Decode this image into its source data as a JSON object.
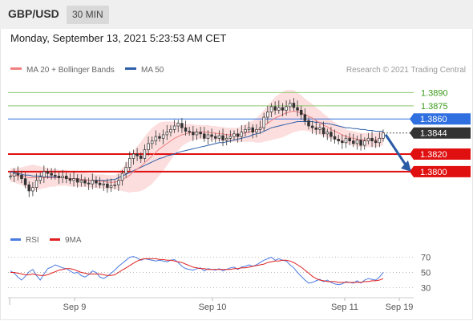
{
  "header": {
    "pair": "GBP/USD",
    "timeframe": "30 MIN"
  },
  "datetime": "Monday, September 13, 2021 5:23:53 AM CET",
  "chart_data": [
    {
      "type": "line",
      "title": "GBP/USD",
      "legend": [
        {
          "name": "MA 20 + Bollinger Bands",
          "color": "#f08080"
        },
        {
          "name": "MA 50",
          "color": "#2e5fa8"
        }
      ],
      "credit": "Research © 2021 Trading Central",
      "levels": [
        {
          "label": "1.3890",
          "value": 1.389,
          "color": "#3a9a1a",
          "style": "thin-text"
        },
        {
          "label": "1.3875",
          "value": 1.3875,
          "color": "#3a9a1a",
          "style": "thin-text"
        },
        {
          "label": "1.3860",
          "value": 1.386,
          "color": "#2f6fe0",
          "style": "box"
        },
        {
          "label": "1.3844",
          "value": 1.3844,
          "color": "#333333",
          "style": "box"
        },
        {
          "label": "1.3820",
          "value": 1.382,
          "color": "#e01010",
          "style": "box"
        },
        {
          "label": "1.3800",
          "value": 1.38,
          "color": "#e01010",
          "style": "box"
        }
      ],
      "last_price": 1.3844,
      "ylim": [
        1.3735,
        1.3905
      ],
      "x_labels": [
        "Sep 9",
        "Sep 10",
        "Sep 11",
        "Sep 19"
      ],
      "close": [
        1.3795,
        1.3798,
        1.3796,
        1.3792,
        1.3785,
        1.3778,
        1.3782,
        1.379,
        1.3794,
        1.38,
        1.3798,
        1.3796,
        1.3795,
        1.3793,
        1.3795,
        1.3792,
        1.379,
        1.3792,
        1.3788,
        1.379,
        1.3787,
        1.3786,
        1.379,
        1.3787,
        1.3785,
        1.3786,
        1.3782,
        1.3784,
        1.3785,
        1.379,
        1.3798,
        1.3805,
        1.3815,
        1.382,
        1.3818,
        1.3815,
        1.3825,
        1.3832,
        1.3835,
        1.384,
        1.3838,
        1.3842,
        1.3845,
        1.3848,
        1.3852,
        1.3855,
        1.385,
        1.3846,
        1.3845,
        1.3842,
        1.3845,
        1.3843,
        1.3838,
        1.3842,
        1.384,
        1.3838,
        1.3841,
        1.3836,
        1.3838,
        1.384,
        1.3843,
        1.384,
        1.3845,
        1.3848,
        1.385,
        1.3845,
        1.3848,
        1.385,
        1.3862,
        1.3868,
        1.3874,
        1.387,
        1.3873,
        1.387,
        1.3874,
        1.3878,
        1.3873,
        1.387,
        1.3865,
        1.3858,
        1.3852,
        1.385,
        1.3848,
        1.385,
        1.3843,
        1.3845,
        1.384,
        1.3837,
        1.3835,
        1.3833,
        1.3838,
        1.3835,
        1.3832,
        1.3836,
        1.383,
        1.3835,
        1.3838,
        1.3835,
        1.3833,
        1.3838,
        1.3844
      ],
      "ma50": [
        1.38,
        1.3799,
        1.3798,
        1.3797,
        1.3796,
        1.3796,
        1.3795,
        1.3795,
        1.3795,
        1.3795,
        1.3794,
        1.3794,
        1.3794,
        1.3793,
        1.3793,
        1.3793,
        1.3792,
        1.3792,
        1.3792,
        1.3791,
        1.3791,
        1.379,
        1.379,
        1.379,
        1.379,
        1.379,
        1.379,
        1.3791,
        1.3791,
        1.3793,
        1.3795,
        1.3797,
        1.3799,
        1.3801,
        1.3803,
        1.3805,
        1.3807,
        1.3809,
        1.3811,
        1.3813,
        1.3815,
        1.3816,
        1.3818,
        1.3819,
        1.382,
        1.3822,
        1.3823,
        1.3824,
        1.3825,
        1.3826,
        1.3827,
        1.3828,
        1.3829,
        1.383,
        1.3831,
        1.3832,
        1.3833,
        1.3833,
        1.3834,
        1.3835,
        1.3836,
        1.3837,
        1.3838,
        1.3839,
        1.384,
        1.3842,
        1.3843,
        1.3844,
        1.3846,
        1.3848,
        1.385,
        1.3851,
        1.3852,
        1.3853,
        1.3854,
        1.3855,
        1.3856,
        1.3857,
        1.3857,
        1.3857,
        1.3857,
        1.3857,
        1.3856,
        1.3856,
        1.3855,
        1.3855,
        1.3854,
        1.3853,
        1.3852,
        1.3851,
        1.385,
        1.385,
        1.3849,
        1.3849,
        1.3848,
        1.3848,
        1.3847,
        1.3847,
        1.3846,
        1.3846,
        1.3846
      ],
      "ma20": [
        1.3796,
        1.3796,
        1.3795,
        1.3795,
        1.3794,
        1.3793,
        1.3793,
        1.3793,
        1.3793,
        1.3793,
        1.3793,
        1.3793,
        1.3793,
        1.3793,
        1.3793,
        1.3793,
        1.3792,
        1.3792,
        1.3792,
        1.3791,
        1.3791,
        1.379,
        1.379,
        1.3789,
        1.3789,
        1.3789,
        1.3788,
        1.3788,
        1.3788,
        1.3789,
        1.3791,
        1.3793,
        1.3796,
        1.38,
        1.3803,
        1.3806,
        1.381,
        1.3814,
        1.3818,
        1.3822,
        1.3826,
        1.3829,
        1.3832,
        1.3835,
        1.3838,
        1.384,
        1.3842,
        1.3843,
        1.3844,
        1.3845,
        1.3845,
        1.3845,
        1.3845,
        1.3845,
        1.3844,
        1.3844,
        1.3843,
        1.3843,
        1.3842,
        1.3842,
        1.3842,
        1.3842,
        1.3843,
        1.3844,
        1.3845,
        1.3846,
        1.3847,
        1.3849,
        1.3852,
        1.3855,
        1.3858,
        1.3861,
        1.3863,
        1.3865,
        1.3867,
        1.3868,
        1.3869,
        1.3868,
        1.3867,
        1.3865,
        1.3863,
        1.3861,
        1.3858,
        1.3856,
        1.3853,
        1.3851,
        1.3848,
        1.3846,
        1.3844,
        1.3842,
        1.384,
        1.3839,
        1.3838,
        1.3837,
        1.3836,
        1.3836,
        1.3836,
        1.3836,
        1.3836,
        1.3837,
        1.3838
      ],
      "bb_width": [
        0.0008,
        0.0008,
        0.0009,
        0.001,
        0.0012,
        0.0014,
        0.0015,
        0.0014,
        0.0013,
        0.0012,
        0.0011,
        0.001,
        0.001,
        0.0009,
        0.0009,
        0.0009,
        0.0009,
        0.0009,
        0.0009,
        0.0009,
        0.0008,
        0.0008,
        0.0008,
        0.0008,
        0.0008,
        0.0008,
        0.0008,
        0.0008,
        0.0008,
        0.001,
        0.0013,
        0.0016,
        0.002,
        0.0023,
        0.0026,
        0.0028,
        0.003,
        0.0031,
        0.0032,
        0.0031,
        0.003,
        0.0028,
        0.0025,
        0.0022,
        0.0019,
        0.0016,
        0.0013,
        0.0011,
        0.001,
        0.0009,
        0.0008,
        0.0008,
        0.0008,
        0.0008,
        0.0008,
        0.0008,
        0.0008,
        0.0008,
        0.0008,
        0.0008,
        0.0008,
        0.0008,
        0.0009,
        0.001,
        0.0011,
        0.0012,
        0.0014,
        0.0016,
        0.0018,
        0.002,
        0.0022,
        0.0024,
        0.0025,
        0.0026,
        0.0026,
        0.0025,
        0.0024,
        0.0022,
        0.002,
        0.0018,
        0.0017,
        0.0016,
        0.0015,
        0.0014,
        0.0013,
        0.0012,
        0.0011,
        0.001,
        0.0009,
        0.0009,
        0.0008,
        0.0008,
        0.0008,
        0.0008,
        0.0008,
        0.0008,
        0.0008,
        0.0008,
        0.0008,
        0.0008,
        0.0008
      ],
      "projection": {
        "from": 1.3844,
        "to": 1.38
      }
    },
    {
      "type": "line",
      "legend": [
        {
          "name": "RSI",
          "color": "#4a7be0"
        },
        {
          "name": "9MA",
          "color": "#e02020"
        }
      ],
      "ylim": [
        20,
        80
      ],
      "y_ticks": [
        30,
        50,
        70
      ],
      "rsi": [
        52,
        49,
        44,
        40,
        45,
        51,
        54,
        46,
        40,
        48,
        55,
        57,
        60,
        58,
        56,
        55,
        52,
        49,
        50,
        46,
        44,
        47,
        52,
        50,
        44,
        42,
        45,
        49,
        53,
        58,
        62,
        66,
        70,
        71,
        69,
        66,
        68,
        67,
        66,
        65,
        66,
        65,
        64,
        66,
        67,
        63,
        58,
        55,
        54,
        53,
        55,
        56,
        52,
        55,
        54,
        53,
        55,
        52,
        54,
        56,
        57,
        54,
        57,
        58,
        60,
        58,
        60,
        63,
        66,
        68,
        70,
        66,
        68,
        66,
        65,
        60,
        56,
        50,
        45,
        40,
        36,
        37,
        39,
        41,
        38,
        40,
        37,
        35,
        34,
        35,
        38,
        37,
        36,
        39,
        36,
        40,
        42,
        41,
        40,
        44,
        50
      ],
      "ma9": [
        50,
        50,
        49,
        48,
        47,
        47,
        48,
        47,
        46,
        46,
        47,
        49,
        51,
        53,
        54,
        55,
        55,
        54,
        52,
        50,
        49,
        48,
        48,
        48,
        48,
        47,
        46,
        46,
        47,
        50,
        53,
        56,
        59,
        62,
        65,
        67,
        68,
        68,
        68,
        68,
        67,
        67,
        66,
        66,
        65,
        64,
        63,
        61,
        59,
        57,
        56,
        55,
        55,
        54,
        54,
        54,
        54,
        54,
        54,
        54,
        55,
        55,
        56,
        56,
        57,
        58,
        59,
        60,
        61,
        63,
        64,
        65,
        65,
        66,
        66,
        65,
        63,
        60,
        57,
        53,
        49,
        45,
        42,
        40,
        39,
        38,
        38,
        38,
        37,
        37,
        37,
        37,
        37,
        37,
        37,
        38,
        38,
        39,
        39,
        40,
        42
      ]
    }
  ]
}
